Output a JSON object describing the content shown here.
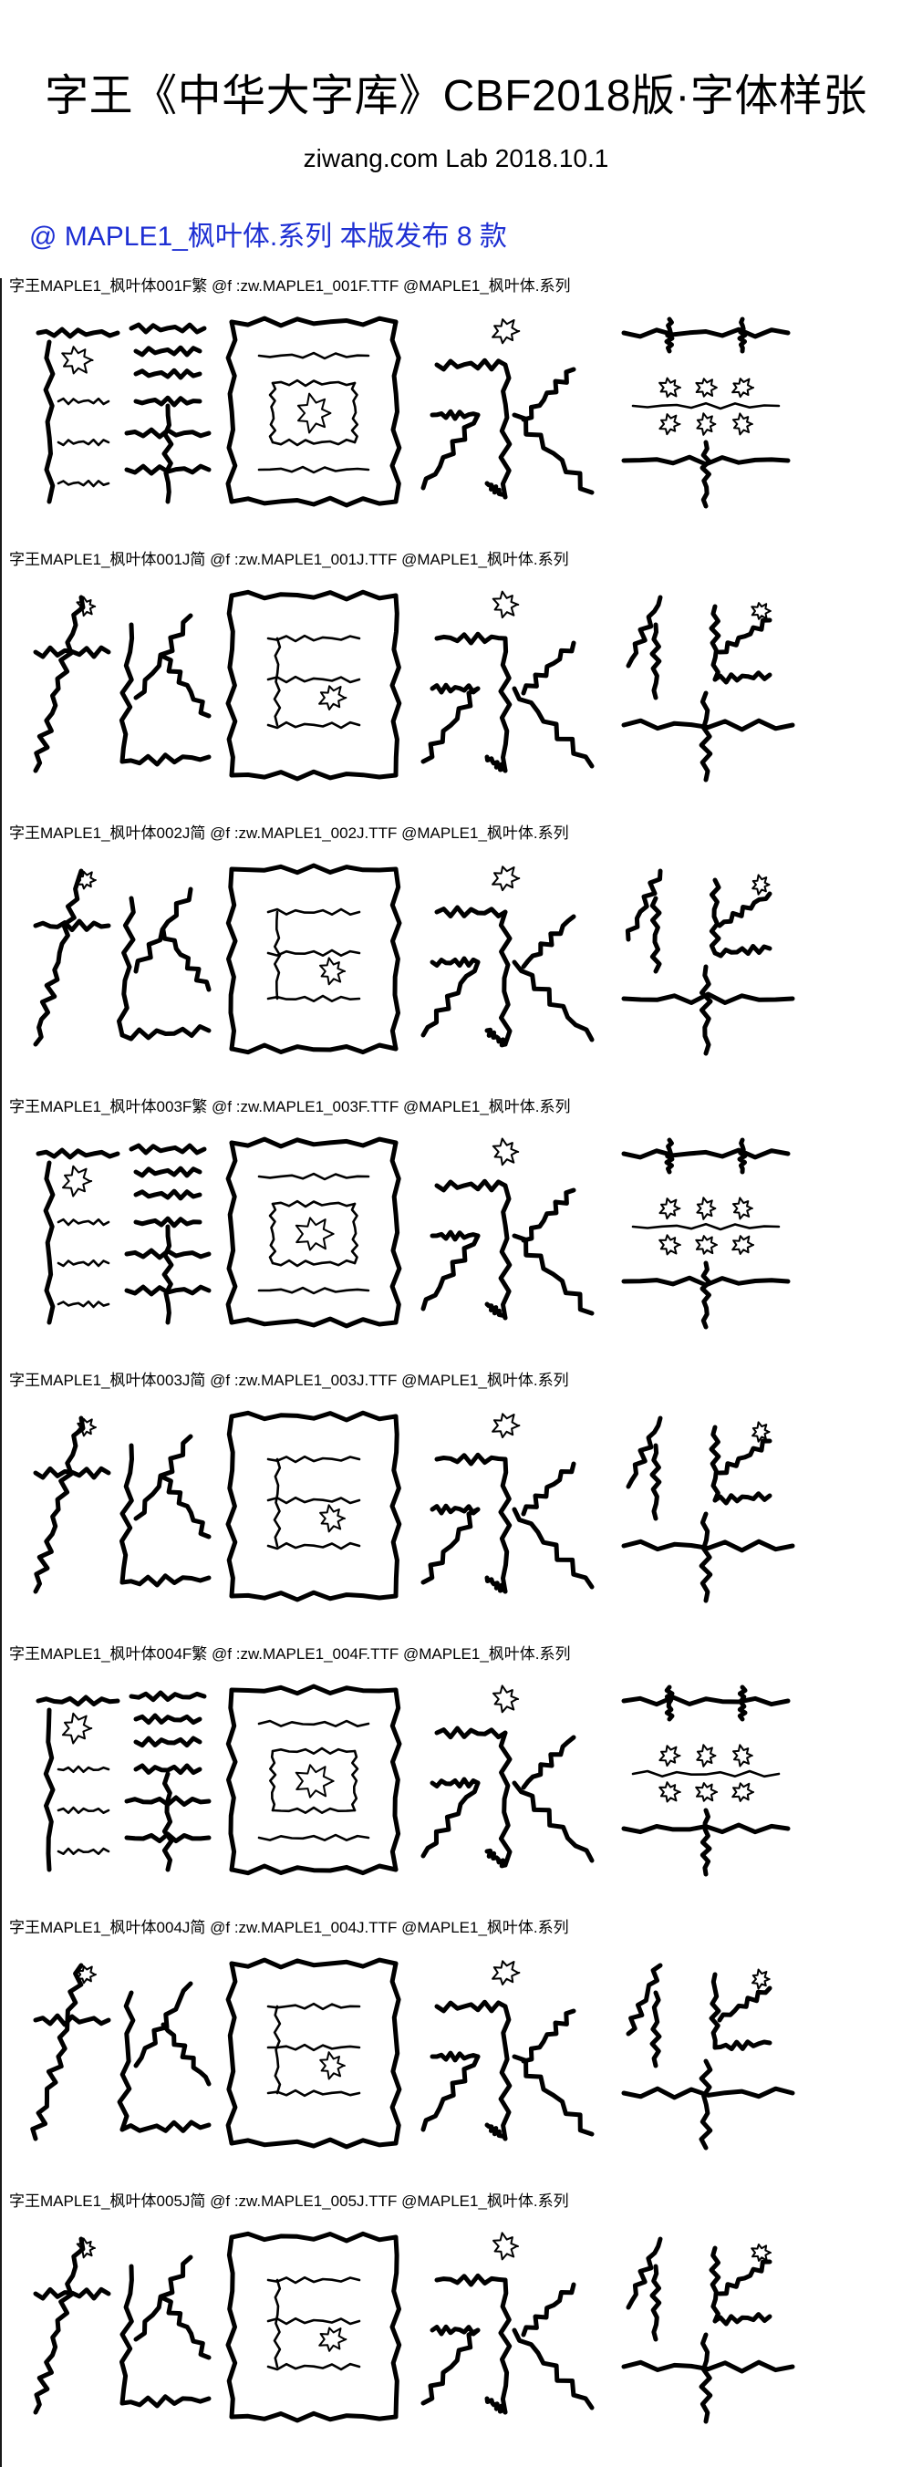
{
  "header": {
    "title": "字王《中华大字库》CBF2018版·字体样张",
    "subtitle": "ziwang.com Lab 2018.10.1"
  },
  "series": {
    "line": "@ MAPLE1_枫叶体.系列 本版发布 8 款"
  },
  "samples": [
    {
      "label": "字王MAPLE1_枫叶体001F繁 @f :zw.MAPLE1_001F.TTF @MAPLE1_枫叶体.系列",
      "variant": "traditional",
      "glyphs": [
        "龍",
        "圖",
        "永",
        "華"
      ]
    },
    {
      "label": "字王MAPLE1_枫叶体001J简 @f :zw.MAPLE1_001J.TTF @MAPLE1_枫叶体.系列",
      "variant": "simplified",
      "glyphs": [
        "龙",
        "图",
        "永",
        "华"
      ]
    },
    {
      "label": "字王MAPLE1_枫叶体002J简 @f :zw.MAPLE1_002J.TTF @MAPLE1_枫叶体.系列",
      "variant": "simplified",
      "glyphs": [
        "龙",
        "图",
        "永",
        "华"
      ]
    },
    {
      "label": "字王MAPLE1_枫叶体003F繁 @f :zw.MAPLE1_003F.TTF @MAPLE1_枫叶体.系列",
      "variant": "traditional",
      "glyphs": [
        "龍",
        "圖",
        "永",
        "華"
      ]
    },
    {
      "label": "字王MAPLE1_枫叶体003J简 @f :zw.MAPLE1_003J.TTF @MAPLE1_枫叶体.系列",
      "variant": "simplified",
      "glyphs": [
        "龙",
        "图",
        "永",
        "华"
      ]
    },
    {
      "label": "字王MAPLE1_枫叶体004F繁 @f :zw.MAPLE1_004F.TTF @MAPLE1_枫叶体.系列",
      "variant": "traditional",
      "glyphs": [
        "龍",
        "圖",
        "永",
        "華"
      ]
    },
    {
      "label": "字王MAPLE1_枫叶体004J简 @f :zw.MAPLE1_004J.TTF @MAPLE1_枫叶体.系列",
      "variant": "simplified",
      "glyphs": [
        "龙",
        "图",
        "永",
        "华"
      ]
    },
    {
      "label": "字王MAPLE1_枫叶体005J简 @f :zw.MAPLE1_005J.TTF @MAPLE1_枫叶体.系列",
      "variant": "simplified",
      "glyphs": [
        "龙",
        "图",
        "永",
        "华"
      ]
    }
  ],
  "colors": {
    "series_text": "#1e2fd3",
    "text": "#000000",
    "background": "#ffffff"
  }
}
